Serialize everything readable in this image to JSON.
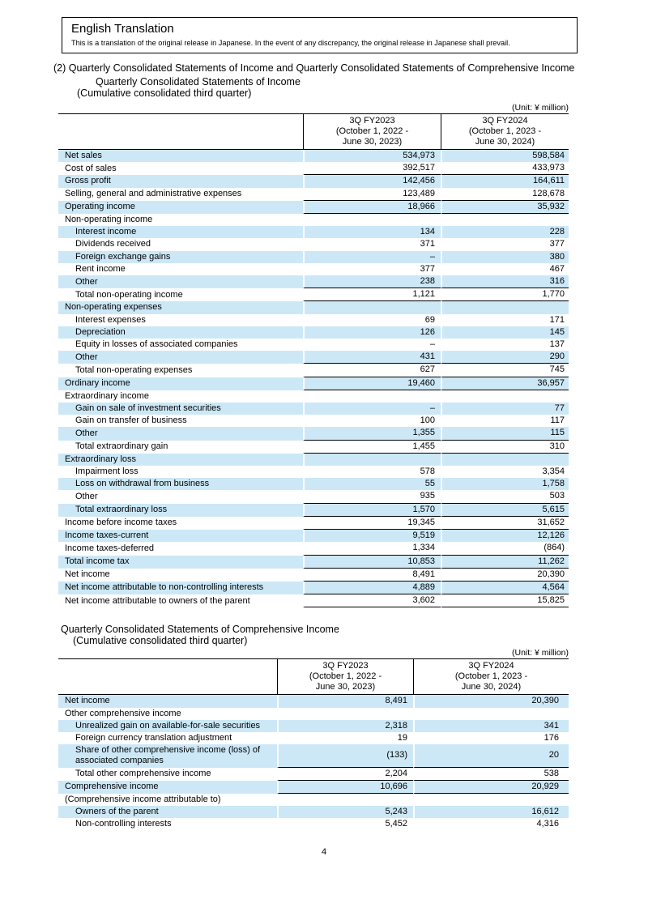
{
  "translation_box": {
    "title": "English Translation",
    "body": "This is a translation of the original release in Japanese. In the event of any discrepancy, the original release in Japanese shall prevail."
  },
  "section_heading": "(2) Quarterly Consolidated Statements of Income and Quarterly Consolidated Statements of Comprehensive Income",
  "income_statement": {
    "title": "Quarterly Consolidated Statements of Income",
    "subtitle": "(Cumulative consolidated third quarter)",
    "unit": "(Unit: ¥ million)",
    "columns": [
      [
        "3Q FY2023",
        "(October 1, 2022 -",
        "June 30, 2023)"
      ],
      [
        "3Q FY2024",
        "(October 1, 2023 -",
        "June 30, 2024)"
      ]
    ],
    "rows": [
      {
        "label": "Net sales",
        "indent": 0,
        "v1": "534,973",
        "v2": "598,584",
        "rule": false
      },
      {
        "label": "Cost of sales",
        "indent": 0,
        "v1": "392,517",
        "v2": "433,973",
        "rule": true
      },
      {
        "label": "Gross profit",
        "indent": 0,
        "v1": "142,456",
        "v2": "164,611",
        "rule": false
      },
      {
        "label": "Selling, general and administrative expenses",
        "indent": 0,
        "v1": "123,489",
        "v2": "128,678",
        "rule": true
      },
      {
        "label": "Operating income",
        "indent": 0,
        "v1": "18,966",
        "v2": "35,932",
        "rule": true
      },
      {
        "label": "Non-operating income",
        "indent": 0,
        "v1": "",
        "v2": "",
        "rule": false
      },
      {
        "label": "Interest income",
        "indent": 1,
        "v1": "134",
        "v2": "228",
        "rule": false
      },
      {
        "label": "Dividends received",
        "indent": 1,
        "v1": "371",
        "v2": "377",
        "rule": false
      },
      {
        "label": "Foreign exchange gains",
        "indent": 1,
        "v1": "–",
        "v2": "380",
        "rule": false
      },
      {
        "label": "Rent income",
        "indent": 1,
        "v1": "377",
        "v2": "467",
        "rule": false
      },
      {
        "label": "Other",
        "indent": 1,
        "v1": "238",
        "v2": "316",
        "rule": true
      },
      {
        "label": "Total non-operating income",
        "indent": 1,
        "v1": "1,121",
        "v2": "1,770",
        "rule": true
      },
      {
        "label": "Non-operating expenses",
        "indent": 0,
        "v1": "",
        "v2": "",
        "rule": false
      },
      {
        "label": "Interest expenses",
        "indent": 1,
        "v1": "69",
        "v2": "171",
        "rule": false
      },
      {
        "label": "Depreciation",
        "indent": 1,
        "v1": "126",
        "v2": "145",
        "rule": false
      },
      {
        "label": "Equity in losses of associated companies",
        "indent": 1,
        "v1": "–",
        "v2": "137",
        "rule": false
      },
      {
        "label": "Other",
        "indent": 1,
        "v1": "431",
        "v2": "290",
        "rule": true
      },
      {
        "label": "Total non-operating expenses",
        "indent": 1,
        "v1": "627",
        "v2": "745",
        "rule": true
      },
      {
        "label": "Ordinary income",
        "indent": 0,
        "v1": "19,460",
        "v2": "36,957",
        "rule": true
      },
      {
        "label": "Extraordinary income",
        "indent": 0,
        "v1": "",
        "v2": "",
        "rule": false
      },
      {
        "label": "Gain on sale of investment securities",
        "indent": 1,
        "v1": "–",
        "v2": "77",
        "rule": false
      },
      {
        "label": "Gain on transfer of business",
        "indent": 1,
        "v1": "100",
        "v2": "117",
        "rule": false
      },
      {
        "label": "Other",
        "indent": 1,
        "v1": "1,355",
        "v2": "115",
        "rule": true
      },
      {
        "label": "Total extraordinary gain",
        "indent": 1,
        "v1": "1,455",
        "v2": "310",
        "rule": true
      },
      {
        "label": "Extraordinary loss",
        "indent": 0,
        "v1": "",
        "v2": "",
        "rule": false
      },
      {
        "label": "Impairment loss",
        "indent": 1,
        "v1": "578",
        "v2": "3,354",
        "rule": false
      },
      {
        "label": "Loss on withdrawal from business",
        "indent": 1,
        "v1": "55",
        "v2": "1,758",
        "rule": false
      },
      {
        "label": "Other",
        "indent": 1,
        "v1": "935",
        "v2": "503",
        "rule": true
      },
      {
        "label": "Total extraordinary loss",
        "indent": 1,
        "v1": "1,570",
        "v2": "5,615",
        "rule": true
      },
      {
        "label": "Income before income taxes",
        "indent": 0,
        "v1": "19,345",
        "v2": "31,652",
        "rule": true
      },
      {
        "label": "Income taxes-current",
        "indent": 0,
        "v1": "9,519",
        "v2": "12,126",
        "rule": false
      },
      {
        "label": "Income taxes-deferred",
        "indent": 0,
        "v1": "1,334",
        "v2": "(864)",
        "rule": true
      },
      {
        "label": "Total income tax",
        "indent": 0,
        "v1": "10,853",
        "v2": "11,262",
        "rule": true
      },
      {
        "label": "Net income",
        "indent": 0,
        "v1": "8,491",
        "v2": "20,390",
        "rule": true
      },
      {
        "label": "Net income attributable to non-controlling interests",
        "indent": 0,
        "v1": "4,889",
        "v2": "4,564",
        "rule": true
      },
      {
        "label": "Net income attributable to owners of the parent",
        "indent": 0,
        "v1": "3,602",
        "v2": "15,825",
        "rule": true
      }
    ]
  },
  "comprehensive_statement": {
    "title": "Quarterly Consolidated Statements of Comprehensive Income",
    "subtitle": "(Cumulative consolidated third quarter)",
    "unit": "(Unit: ¥ million)",
    "columns": [
      [
        "3Q FY2023",
        "(October 1, 2022 -",
        "June 30, 2023)"
      ],
      [
        "3Q FY2024",
        "(October 1, 2023 -",
        "June 30, 2024)"
      ]
    ],
    "rows": [
      {
        "label": "Net income",
        "indent": 0,
        "v1": "8,491",
        "v2": "20,390",
        "rule": false
      },
      {
        "label": "Other comprehensive income",
        "indent": 0,
        "v1": "",
        "v2": "",
        "rule": false
      },
      {
        "label": "Unrealized gain on available-for-sale securities",
        "indent": 1,
        "v1": "2,318",
        "v2": "341",
        "rule": false
      },
      {
        "label": "Foreign currency translation adjustment",
        "indent": 1,
        "v1": "19",
        "v2": "176",
        "rule": false
      },
      {
        "label": "Share of other comprehensive income (loss) of associated companies",
        "indent": 1,
        "v1": "(133)",
        "v2": "20",
        "rule": true
      },
      {
        "label": "Total other comprehensive income",
        "indent": 1,
        "v1": "2,204",
        "v2": "538",
        "rule": true
      },
      {
        "label": "Comprehensive income",
        "indent": 0,
        "v1": "10,696",
        "v2": "20,929",
        "rule": true
      },
      {
        "label": "(Comprehensive income attributable to)",
        "indent": 0,
        "v1": "",
        "v2": "",
        "rule": false
      },
      {
        "label": "Owners of the parent",
        "indent": 1,
        "v1": "5,243",
        "v2": "16,612",
        "rule": false
      },
      {
        "label": "Non-controlling interests",
        "indent": 1,
        "v1": "5,452",
        "v2": "4,316",
        "rule": false
      }
    ]
  },
  "page_number": "4"
}
